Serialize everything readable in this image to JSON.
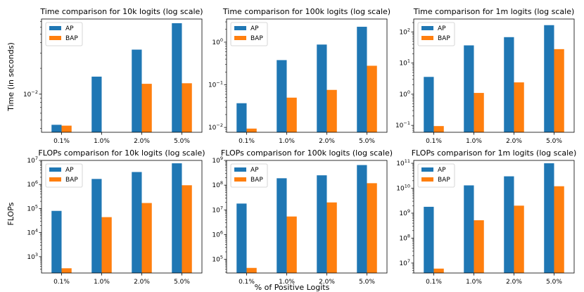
{
  "figure": {
    "row_ylabels": [
      "Time (in seconds)",
      "FLOPs"
    ],
    "shared_xlabel": "% of Positive Logits"
  },
  "colors": {
    "AP": "#1f77b4",
    "BAP": "#ff7f0e"
  },
  "chart_data": [
    {
      "type": "bar",
      "title": "Time comparison for 10k logits (log scale)",
      "yscale": "log",
      "categories": [
        "0.1%",
        "1.0%",
        "2.0%",
        "5.0%"
      ],
      "series": [
        {
          "name": "AP",
          "values": [
            0.0044,
            0.016,
            0.033,
            0.067
          ]
        },
        {
          "name": "BAP",
          "values": [
            0.0043,
            0.0036,
            0.0132,
            0.0134
          ]
        }
      ],
      "ylim": [
        0.0036,
        0.075
      ],
      "yticks": [
        {
          "value": 0.01,
          "label": "10"
        }
      ],
      "legend": "top-left"
    },
    {
      "type": "bar",
      "title": "Time comparison for 100k logits (log scale)",
      "yscale": "log",
      "categories": [
        "0.1%",
        "1.0%",
        "2.0%",
        "5.0%"
      ],
      "series": [
        {
          "name": "AP",
          "values": [
            0.037,
            0.38,
            0.88,
            2.3
          ]
        },
        {
          "name": "BAP",
          "values": [
            0.0094,
            0.05,
            0.076,
            0.28
          ]
        }
      ],
      "ylim": [
        0.0077,
        3.5
      ],
      "yticks": [
        {
          "value": 0.01,
          "label": "10"
        },
        {
          "value": 0.1,
          "label": "10"
        },
        {
          "value": 1,
          "label": "10"
        }
      ],
      "legend": "top-left"
    },
    {
      "type": "bar",
      "title": "Time comparison for 1m logits (log scale)",
      "yscale": "log",
      "categories": [
        "0.1%",
        "1.0%",
        "2.0%",
        "5.0%"
      ],
      "series": [
        {
          "name": "AP",
          "values": [
            3.6,
            37,
            68,
            165
          ]
        },
        {
          "name": "BAP",
          "values": [
            0.095,
            1.1,
            2.4,
            28
          ]
        }
      ],
      "ylim": [
        0.06,
        260
      ],
      "yticks": [
        {
          "value": 0.1,
          "label": "10"
        },
        {
          "value": 1,
          "label": "10"
        },
        {
          "value": 10,
          "label": "10"
        },
        {
          "value": 100,
          "label": "10"
        }
      ],
      "legend": "top-left"
    },
    {
      "type": "bar",
      "title": "FLOPs comparison for 10k logits (log scale)",
      "yscale": "log",
      "categories": [
        "0.1%",
        "1.0%",
        "2.0%",
        "5.0%"
      ],
      "series": [
        {
          "name": "AP",
          "values": [
            80000,
            1700000,
            3300000,
            7600000
          ]
        },
        {
          "name": "BAP",
          "values": [
            330,
            44000,
            170000,
            930000
          ]
        }
      ],
      "ylim": [
        210,
        10000000
      ],
      "yticks": [
        {
          "value": 1000,
          "label": "10"
        },
        {
          "value": 10000,
          "label": "10"
        },
        {
          "value": 100000,
          "label": "10"
        },
        {
          "value": 1000000,
          "label": "10"
        },
        {
          "value": 10000000,
          "label": "10"
        }
      ],
      "legend": "top-left"
    },
    {
      "type": "bar",
      "title": "FLOPs comparison for 100k logits (log scale)",
      "yscale": "log",
      "categories": [
        "0.1%",
        "1.0%",
        "2.0%",
        "5.0%"
      ],
      "series": [
        {
          "name": "AP",
          "values": [
            18000000,
            190000000,
            250000000,
            650000000
          ]
        },
        {
          "name": "BAP",
          "values": [
            45000,
            5400000,
            20000000,
            120000000
          ]
        }
      ],
      "ylim": [
        28000,
        1000000000
      ],
      "yticks": [
        {
          "value": 100000,
          "label": "10"
        },
        {
          "value": 1000000,
          "label": "10"
        },
        {
          "value": 10000000,
          "label": "10"
        },
        {
          "value": 100000000,
          "label": "10"
        },
        {
          "value": 1000000000,
          "label": "10"
        }
      ],
      "legend": "top-left"
    },
    {
      "type": "bar",
      "title": "FLOPs comparison for 1m logits (log scale)",
      "yscale": "log",
      "categories": [
        "0.1%",
        "1.0%",
        "2.0%",
        "5.0%"
      ],
      "series": [
        {
          "name": "AP",
          "values": [
            1800000000,
            13000000000,
            30000000000,
            100000000000
          ]
        },
        {
          "name": "BAP",
          "values": [
            6000000,
            520000000,
            2000000000,
            12000000000
          ]
        }
      ],
      "ylim": [
        4000000,
        130000000000
      ],
      "yticks": [
        {
          "value": 10000000,
          "label": "10"
        },
        {
          "value": 100000000,
          "label": "10"
        },
        {
          "value": 1000000000,
          "label": "10"
        },
        {
          "value": 10000000000,
          "label": "10"
        },
        {
          "value": 100000000000,
          "label": "10"
        }
      ],
      "legend": "top-left"
    }
  ]
}
